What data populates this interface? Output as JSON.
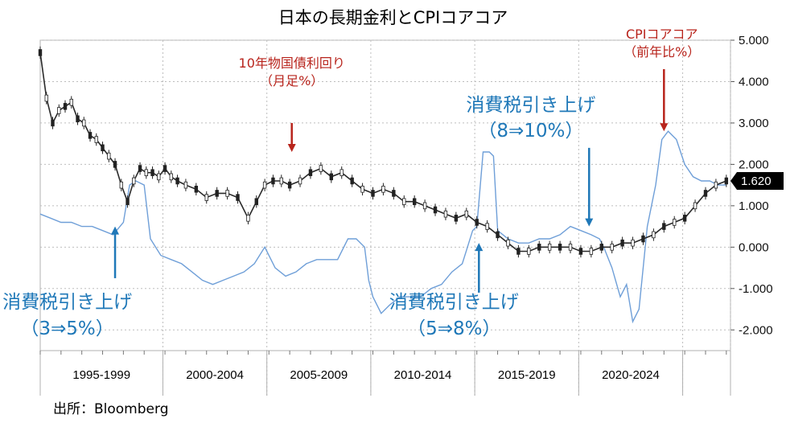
{
  "chart_data": {
    "type": "line",
    "title": "日本の長期金利とCPIコアコア",
    "source": "出所：Bloomberg",
    "x_unit": "year",
    "xlim": [
      1993.0,
      2026.2
    ],
    "ylim": [
      -2.5,
      5.0
    ],
    "y_ticks": [
      "5.000",
      "4.000",
      "3.000",
      "2.000",
      "1.000",
      "0.000",
      "-1.000",
      "-2.000"
    ],
    "y_tick_values": [
      5,
      4,
      3,
      2,
      1,
      0,
      -1,
      -2
    ],
    "grid": true,
    "period_labels": [
      {
        "label": "1995-1999",
        "from": 1993.0,
        "to": 1998.9
      },
      {
        "label": "2000-2004",
        "from": 1998.9,
        "to": 2003.9
      },
      {
        "label": "2005-2009",
        "from": 2003.9,
        "to": 2008.9
      },
      {
        "label": "2010-2014",
        "from": 2008.9,
        "to": 2013.9
      },
      {
        "label": "2015-2019",
        "from": 2013.9,
        "to": 2018.9
      },
      {
        "label": "2020-2024",
        "from": 2018.9,
        "to": 2023.9
      },
      {
        "label": "",
        "from": 2023.9,
        "to": 2026.2
      }
    ],
    "last_value_label": "1.620",
    "series": [
      {
        "label": "10年物国債利回り（月足%）",
        "style": "candlestick",
        "color": "#222222",
        "x": [
          1993.0,
          1993.3,
          1993.6,
          1993.9,
          1994.2,
          1994.5,
          1994.8,
          1995.1,
          1995.4,
          1995.7,
          1996.0,
          1996.3,
          1996.6,
          1996.9,
          1997.2,
          1997.5,
          1997.8,
          1998.1,
          1998.4,
          1998.7,
          1999.0,
          1999.3,
          1999.6,
          2000.0,
          2000.5,
          2001.0,
          2001.5,
          2002.0,
          2002.5,
          2003.0,
          2003.4,
          2003.8,
          2004.2,
          2004.6,
          2005.0,
          2005.5,
          2006.0,
          2006.5,
          2007.0,
          2007.5,
          2008.0,
          2008.5,
          2009.0,
          2009.5,
          2010.0,
          2010.5,
          2011.0,
          2011.5,
          2012.0,
          2012.5,
          2013.0,
          2013.5,
          2014.0,
          2014.5,
          2015.0,
          2015.5,
          2016.0,
          2016.5,
          2017.0,
          2017.5,
          2018.0,
          2018.5,
          2019.0,
          2019.5,
          2020.0,
          2020.5,
          2021.0,
          2021.5,
          2022.0,
          2022.5,
          2023.0,
          2023.5,
          2024.0,
          2024.5,
          2025.0,
          2025.5,
          2026.0
        ],
        "values": [
          4.7,
          3.6,
          3.0,
          3.3,
          3.4,
          3.5,
          3.1,
          3.0,
          2.7,
          2.6,
          2.4,
          2.2,
          2.0,
          1.5,
          1.1,
          1.6,
          1.9,
          1.8,
          1.8,
          1.7,
          1.9,
          1.7,
          1.6,
          1.5,
          1.4,
          1.2,
          1.3,
          1.3,
          1.2,
          0.7,
          1.1,
          1.5,
          1.6,
          1.6,
          1.5,
          1.6,
          1.8,
          1.9,
          1.7,
          1.8,
          1.6,
          1.4,
          1.3,
          1.4,
          1.3,
          1.1,
          1.1,
          1.0,
          0.9,
          0.8,
          0.7,
          0.8,
          0.6,
          0.5,
          0.3,
          0.1,
          -0.1,
          -0.1,
          0.0,
          0.0,
          0.0,
          0.0,
          -0.1,
          -0.1,
          0.0,
          0.0,
          0.1,
          0.1,
          0.2,
          0.3,
          0.5,
          0.6,
          0.7,
          1.0,
          1.3,
          1.5,
          1.6
        ]
      },
      {
        "label": "CPIコアコア（前年比%）",
        "style": "line",
        "color": "#6f9fd8",
        "x": [
          1993.0,
          1993.5,
          1994.0,
          1994.5,
          1995.0,
          1995.5,
          1996.0,
          1996.5,
          1997.0,
          1997.3,
          1997.6,
          1998.0,
          1998.3,
          1998.8,
          1999.3,
          1999.8,
          2000.3,
          2000.8,
          2001.3,
          2001.8,
          2002.3,
          2002.8,
          2003.3,
          2003.8,
          2004.3,
          2004.8,
          2005.3,
          2005.8,
          2006.3,
          2006.8,
          2007.3,
          2007.8,
          2008.2,
          2008.6,
          2008.8,
          2009.0,
          2009.4,
          2009.8,
          2010.3,
          2010.8,
          2011.3,
          2011.8,
          2012.3,
          2012.8,
          2013.3,
          2013.8,
          2014.0,
          2014.3,
          2014.6,
          2014.8,
          2015.0,
          2015.5,
          2016.0,
          2016.5,
          2017.0,
          2017.5,
          2018.0,
          2018.5,
          2019.0,
          2019.5,
          2019.9,
          2020.1,
          2020.5,
          2020.9,
          2021.2,
          2021.5,
          2021.8,
          2022.2,
          2022.6,
          2022.9,
          2023.2,
          2023.6,
          2024.0,
          2024.4,
          2024.8,
          2025.2,
          2025.6,
          2026.0
        ],
        "values": [
          0.8,
          0.7,
          0.6,
          0.6,
          0.5,
          0.5,
          0.4,
          0.3,
          0.6,
          1.5,
          1.6,
          1.5,
          0.2,
          -0.2,
          -0.3,
          -0.4,
          -0.6,
          -0.8,
          -0.9,
          -0.8,
          -0.7,
          -0.6,
          -0.4,
          0.0,
          -0.5,
          -0.7,
          -0.6,
          -0.4,
          -0.3,
          -0.3,
          -0.3,
          0.2,
          0.2,
          0.0,
          -0.8,
          -1.2,
          -1.6,
          -1.4,
          -1.2,
          -1.2,
          -1.2,
          -1.0,
          -0.9,
          -0.6,
          -0.4,
          0.4,
          0.5,
          2.3,
          2.3,
          2.2,
          0.4,
          0.2,
          0.1,
          0.1,
          0.2,
          0.2,
          0.3,
          0.5,
          0.4,
          0.3,
          0.2,
          0.0,
          -0.5,
          -1.2,
          -0.9,
          -1.8,
          -1.5,
          0.5,
          1.5,
          2.6,
          2.8,
          2.6,
          2.0,
          1.7,
          1.6,
          1.6,
          1.5,
          1.5
        ]
      }
    ],
    "annotations": [
      {
        "lines": [
          "10年物国債利回り",
          "（月足%）"
        ],
        "color": "red",
        "x": 2005.1,
        "y_from": 3.0,
        "y_to": 2.3
      },
      {
        "lines": [
          "CPIコアコア",
          "（前年比%）"
        ],
        "color": "red",
        "x": 2023.0,
        "y_from": 4.3,
        "y_to": 2.8
      },
      {
        "lines": [
          "消費税引き上げ",
          "（8⇒10%）"
        ],
        "color": "blue",
        "x": 2019.4,
        "y_from": 2.4,
        "y_to": 0.5
      },
      {
        "lines": [
          "消費税引き上げ",
          "（3⇒5%）"
        ],
        "color": "blue",
        "x": 1996.6,
        "y_from": -0.75,
        "y_to": 0.5
      },
      {
        "lines": [
          "消費税引き上げ",
          "（5⇒8%）"
        ],
        "color": "blue",
        "x": 2014.1,
        "y_from": -1.1,
        "y_to": 0.1
      }
    ]
  }
}
